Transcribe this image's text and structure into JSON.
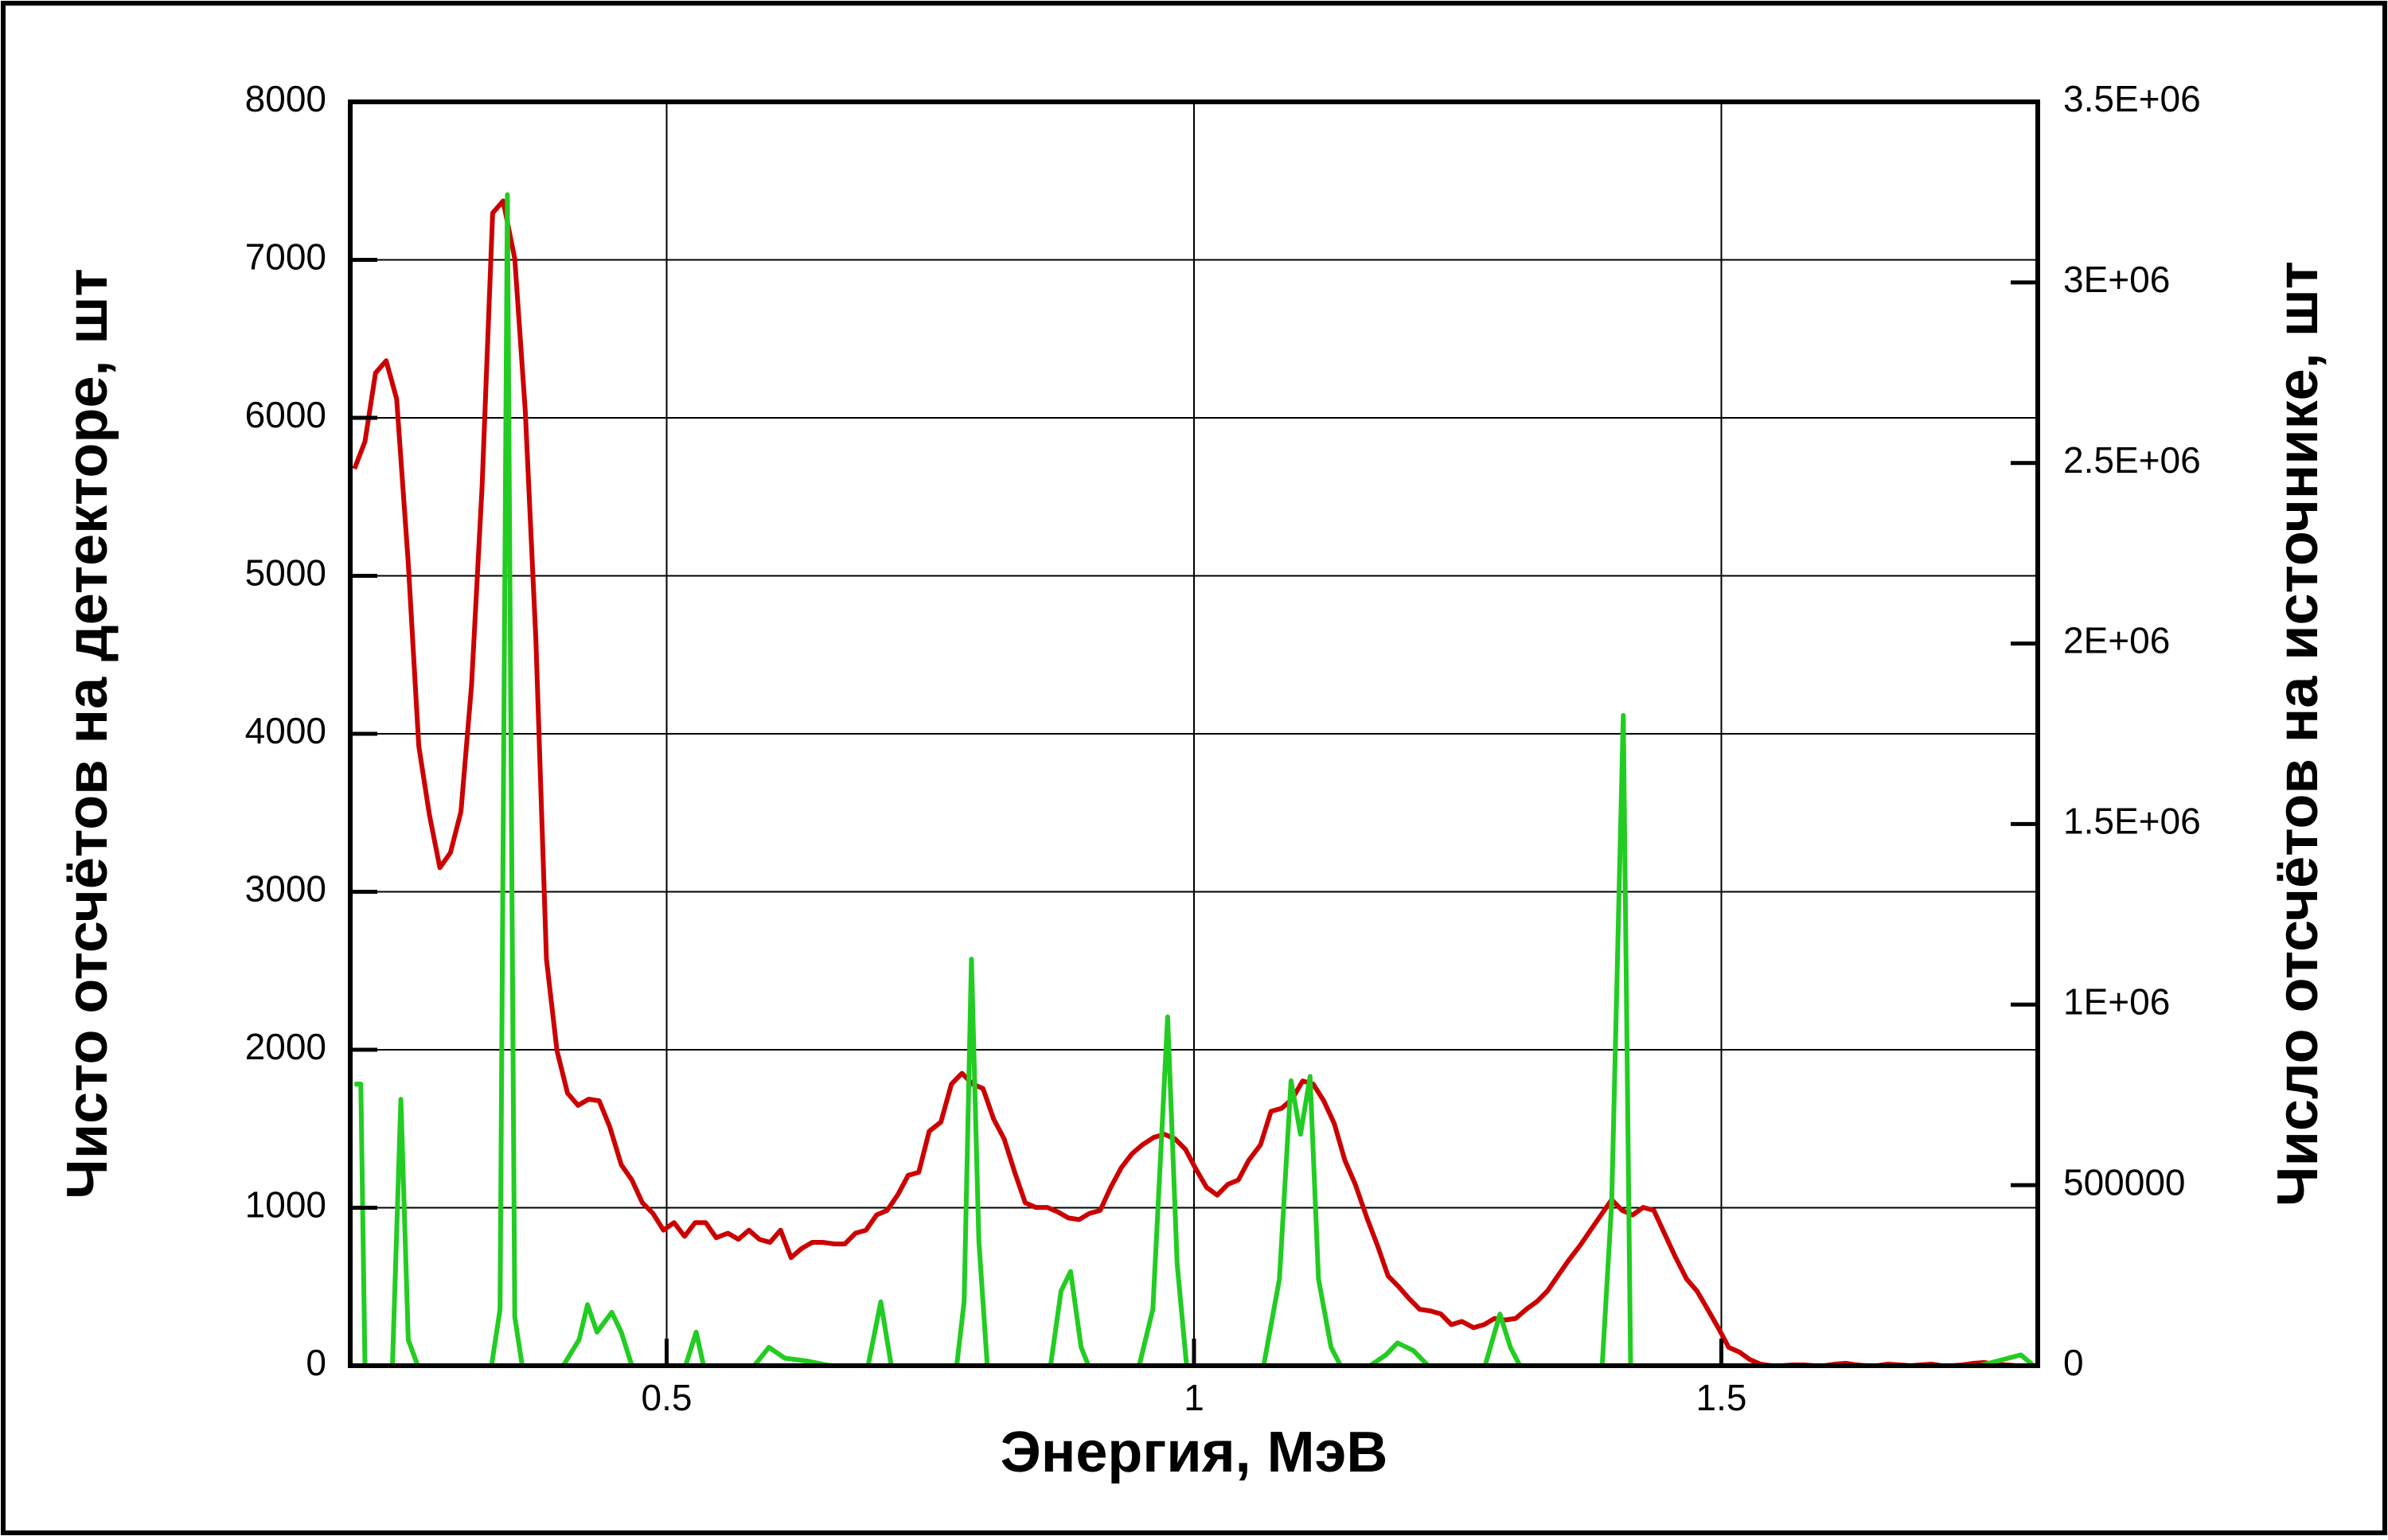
{
  "chart_data": {
    "type": "line",
    "x_label": "Энергия, МэВ",
    "y_label": "Чисто отсчётов на детекторе, шт",
    "y2_label": "Число отсчётов на источнике, шт",
    "xlim": [
      0.2,
      1.8
    ],
    "xticks": [
      0.5,
      1,
      1.5
    ],
    "ylim": [
      0,
      8000
    ],
    "yticks": [
      0,
      1000,
      2000,
      3000,
      4000,
      5000,
      6000,
      7000,
      8000
    ],
    "y2lim": [
      0,
      3500000
    ],
    "y2ticks": [
      0,
      500000,
      {
        "value": 1000000,
        "label": "1E+06"
      },
      {
        "value": 1500000,
        "label": "1.5E+06"
      },
      {
        "value": 2000000,
        "label": "2E+06"
      },
      {
        "value": 2500000,
        "label": "2.5E+06"
      },
      {
        "value": 3000000,
        "label": "3E+06"
      },
      {
        "value": 3500000,
        "label": "3.5E+06"
      }
    ],
    "grid": true,
    "series": [
      {
        "color": "#cc0000",
        "x": [
          0.204,
          0.214,
          0.224,
          0.234,
          0.244,
          0.255,
          0.265,
          0.275,
          0.285,
          0.295,
          0.305,
          0.315,
          0.325,
          0.335,
          0.345,
          0.356,
          0.366,
          0.376,
          0.386,
          0.396,
          0.406,
          0.416,
          0.426,
          0.436,
          0.446,
          0.457,
          0.467,
          0.477,
          0.487,
          0.497,
          0.507,
          0.517,
          0.527,
          0.537,
          0.547,
          0.558,
          0.568,
          0.578,
          0.588,
          0.598,
          0.608,
          0.618,
          0.628,
          0.638,
          0.648,
          0.659,
          0.669,
          0.679,
          0.689,
          0.699,
          0.709,
          0.719,
          0.729,
          0.739,
          0.749,
          0.76,
          0.77,
          0.78,
          0.79,
          0.8,
          0.81,
          0.82,
          0.83,
          0.84,
          0.85,
          0.861,
          0.871,
          0.881,
          0.891,
          0.901,
          0.911,
          0.921,
          0.931,
          0.941,
          0.951,
          0.962,
          0.972,
          0.982,
          0.992,
          1.002,
          1.012,
          1.022,
          1.032,
          1.042,
          1.052,
          1.063,
          1.073,
          1.083,
          1.093,
          1.103,
          1.113,
          1.123,
          1.133,
          1.143,
          1.153,
          1.164,
          1.174,
          1.184,
          1.194,
          1.204,
          1.214,
          1.224,
          1.234,
          1.244,
          1.254,
          1.265,
          1.275,
          1.285,
          1.295,
          1.305,
          1.315,
          1.325,
          1.335,
          1.345,
          1.355,
          1.366,
          1.376,
          1.386,
          1.396,
          1.406,
          1.416,
          1.426,
          1.436,
          1.446,
          1.456,
          1.467,
          1.477,
          1.487,
          1.497,
          1.507,
          1.517,
          1.527,
          1.537,
          1.547,
          1.557,
          1.568,
          1.578,
          1.588,
          1.598,
          1.608,
          1.618,
          1.628,
          1.638,
          1.648,
          1.658,
          1.669,
          1.679,
          1.689,
          1.699,
          1.709,
          1.719,
          1.729,
          1.739,
          1.749,
          1.759,
          1.77,
          1.78,
          1.79
        ],
        "values": [
          5677,
          5850,
          6284,
          6361,
          6120,
          5080,
          3923,
          3489,
          3152,
          3248,
          3508,
          4308,
          5561,
          7296,
          7373,
          7007,
          6043,
          4598,
          2573,
          1995,
          1725,
          1648,
          1687,
          1677,
          1513,
          1272,
          1176,
          1031,
          964,
          858,
          906,
          819,
          906,
          906,
          810,
          839,
          800,
          858,
          800,
          781,
          858,
          684,
          742,
          781,
          781,
          771,
          771,
          839,
          858,
          954,
          983,
          1080,
          1205,
          1224,
          1484,
          1542,
          1783,
          1851,
          1783,
          1754,
          1561,
          1436,
          1224,
          1031,
          1002,
          1002,
          973,
          935,
          925,
          964,
          983,
          1128,
          1253,
          1340,
          1398,
          1446,
          1465,
          1436,
          1369,
          1243,
          1128,
          1080,
          1147,
          1176,
          1301,
          1398,
          1610,
          1629,
          1687,
          1802,
          1783,
          1677,
          1533,
          1301,
          1147,
          935,
          761,
          569,
          501,
          424,
          357,
          347,
          328,
          260,
          280,
          241,
          260,
          299,
          289,
          299,
          357,
          405,
          472,
          569,
          665,
          761,
          858,
          954,
          1051,
          983,
          954,
          1002,
          983,
          839,
          694,
          549,
          472,
          357,
          241,
          116,
          87,
          39,
          10,
          0,
          0,
          5,
          5,
          0,
          0,
          10,
          15,
          5,
          0,
          0,
          10,
          5,
          0,
          5,
          10,
          0,
          0,
          5,
          15,
          20,
          10,
          5,
          0,
          0
        ]
      },
      {
        "color": "#22cc22",
        "axis": "y2",
        "x": [
          0.204,
          0.21,
          0.214,
          0.24,
          0.248,
          0.255,
          0.264,
          0.334,
          0.342,
          0.349,
          0.356,
          0.363,
          0.402,
          0.417,
          0.425,
          0.434,
          0.448,
          0.457,
          0.467,
          0.518,
          0.528,
          0.535,
          0.583,
          0.597,
          0.612,
          0.633,
          0.655,
          0.691,
          0.703,
          0.713,
          0.775,
          0.782,
          0.789,
          0.796,
          0.804,
          0.864,
          0.874,
          0.883,
          0.893,
          0.9,
          0.948,
          0.961,
          0.975,
          0.984,
          0.993,
          1.066,
          1.081,
          1.092,
          1.101,
          1.11,
          1.118,
          1.13,
          1.139,
          1.167,
          1.182,
          1.193,
          1.208,
          1.222,
          1.276,
          1.29,
          1.3,
          1.309,
          1.387,
          1.396,
          1.407,
          1.414,
          1.745,
          1.784,
          1.796
        ],
        "values": [
          780000,
          780000,
          0,
          0,
          738000,
          72000,
          0,
          0,
          156000,
          3243000,
          135000,
          0,
          0,
          72000,
          169000,
          93000,
          148000,
          93000,
          0,
          0,
          93000,
          0,
          0,
          51000,
          21000,
          13000,
          0,
          0,
          177000,
          0,
          0,
          177000,
          1126000,
          346000,
          0,
          0,
          207000,
          261000,
          51000,
          0,
          0,
          156000,
          966000,
          283000,
          0,
          0,
          240000,
          789000,
          641000,
          801000,
          240000,
          51000,
          0,
          0,
          30000,
          63000,
          42000,
          0,
          0,
          143000,
          51000,
          0,
          0,
          451000,
          1801000,
          0,
          0,
          30000,
          0
        ]
      }
    ]
  }
}
